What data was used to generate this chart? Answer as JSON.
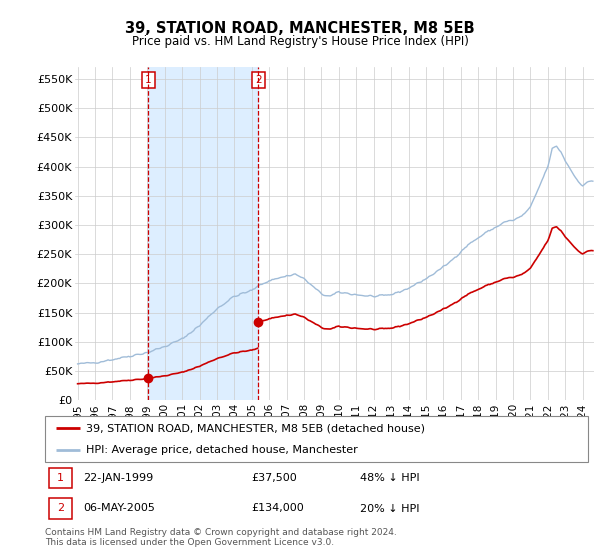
{
  "title": "39, STATION ROAD, MANCHESTER, M8 5EB",
  "subtitle": "Price paid vs. HM Land Registry's House Price Index (HPI)",
  "hpi_label": "HPI: Average price, detached house, Manchester",
  "property_label": "39, STATION ROAD, MANCHESTER, M8 5EB (detached house)",
  "sale1_date": "22-JAN-1999",
  "sale1_price": 37500,
  "sale1_note": "48% ↓ HPI",
  "sale2_date": "06-MAY-2005",
  "sale2_price": 134000,
  "sale2_note": "20% ↓ HPI",
  "footer": "Contains HM Land Registry data © Crown copyright and database right 2024.\nThis data is licensed under the Open Government Licence v3.0.",
  "hpi_color": "#a0bcd8",
  "property_color": "#cc0000",
  "vline_color": "#cc0000",
  "shade_color": "#ddeeff",
  "ylim": [
    0,
    570000
  ],
  "yticks": [
    0,
    50000,
    100000,
    150000,
    200000,
    250000,
    300000,
    350000,
    400000,
    450000,
    500000,
    550000
  ],
  "ytick_labels": [
    "£0",
    "£50K",
    "£100K",
    "£150K",
    "£200K",
    "£250K",
    "£300K",
    "£350K",
    "£400K",
    "£450K",
    "£500K",
    "£550K"
  ],
  "sale1_x": 1999.055,
  "sale2_x": 2005.37
}
